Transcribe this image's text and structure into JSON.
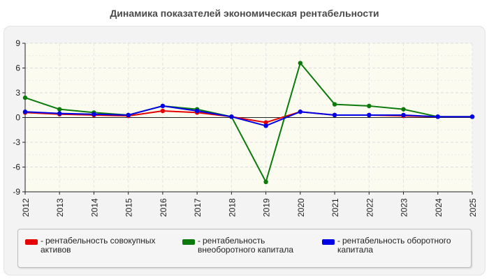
{
  "chart_data": {
    "type": "line",
    "title": "Динамика показателей экономическая рентабельности",
    "categories": [
      "2012",
      "2013",
      "2014",
      "2015",
      "2016",
      "2017",
      "2018",
      "2019",
      "2020",
      "2021",
      "2022",
      "2023",
      "2024",
      "2025"
    ],
    "yticks": [
      "9",
      "6",
      "3",
      "0",
      "-3",
      "-6",
      "-9"
    ],
    "ylim": [
      -9,
      9
    ],
    "grid": true,
    "legend_position": "bottom",
    "series": [
      {
        "name": "рентабельность совокупных активов",
        "color": "#e60000",
        "values": [
          0.6,
          0.4,
          0.3,
          0.2,
          0.8,
          0.6,
          0.1,
          -0.6,
          0.7,
          0.3,
          0.3,
          0.2,
          0.1,
          0.1
        ]
      },
      {
        "name": "рентабельность внеоборотного капитала",
        "color": "#0b7a0b",
        "values": [
          2.4,
          1.0,
          0.6,
          0.3,
          1.4,
          1.0,
          0.1,
          -7.8,
          6.6,
          1.6,
          1.4,
          1.0,
          0.1,
          0.1
        ]
      },
      {
        "name": "рентабельность оборотного капитала",
        "color": "#0000e6",
        "values": [
          0.7,
          0.5,
          0.4,
          0.3,
          1.4,
          0.8,
          0.1,
          -1.0,
          0.7,
          0.3,
          0.3,
          0.3,
          0.1,
          0.1
        ]
      }
    ]
  },
  "legend": {
    "dash": "-",
    "items": [
      "рентабельность совокупных активов",
      "рентабельность внеоборотного капитала",
      "рентабельность оборотного капитала"
    ]
  }
}
